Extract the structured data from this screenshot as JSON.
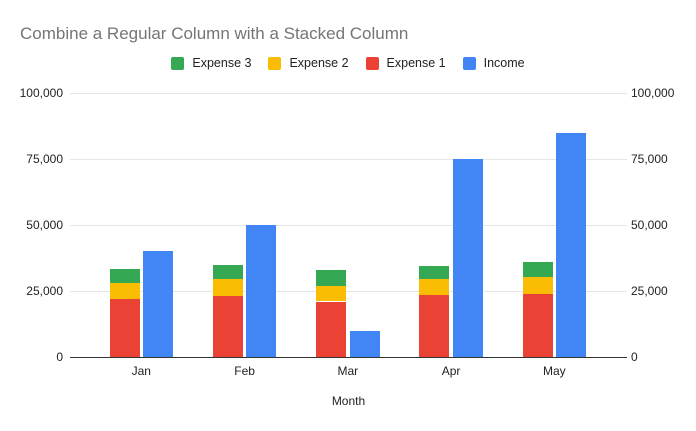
{
  "chart_data": {
    "type": "combo-column",
    "title": "Combine a Regular Column with a Stacked Column",
    "xlabel": "Month",
    "categories": [
      "Jan",
      "Feb",
      "Mar",
      "Apr",
      "May"
    ],
    "series": [
      {
        "name": "Expense 1",
        "render": "stacked-column",
        "color": "#EA4335",
        "values": [
          22000,
          23000,
          21000,
          23500,
          24000
        ]
      },
      {
        "name": "Expense 2",
        "render": "stacked-column",
        "color": "#FBBC04",
        "values": [
          6000,
          6500,
          6000,
          6000,
          6500
        ]
      },
      {
        "name": "Expense 3",
        "render": "stacked-column",
        "color": "#34A853",
        "values": [
          5500,
          5500,
          6000,
          5000,
          5500
        ]
      },
      {
        "name": "Income",
        "render": "column",
        "color": "#4285F4",
        "values": [
          40000,
          50000,
          10000,
          75000,
          85000
        ]
      }
    ],
    "legend": {
      "position": "top",
      "items": [
        {
          "label": "Expense 3",
          "color": "#34A853"
        },
        {
          "label": "Expense 2",
          "color": "#FBBC04"
        },
        {
          "label": "Expense 1",
          "color": "#EA4335"
        },
        {
          "label": "Income",
          "color": "#4285F4"
        }
      ]
    },
    "y_ticks": [
      0,
      25000,
      50000,
      75000,
      100000
    ],
    "ylim": [
      0,
      100000
    ],
    "dual_y_axis": true,
    "grid": true,
    "colors": {
      "title_text": "#757575",
      "axis_text": "#222222",
      "gridline": "#e6e6e6",
      "axis_line": "#333333",
      "background": "#ffffff"
    }
  }
}
